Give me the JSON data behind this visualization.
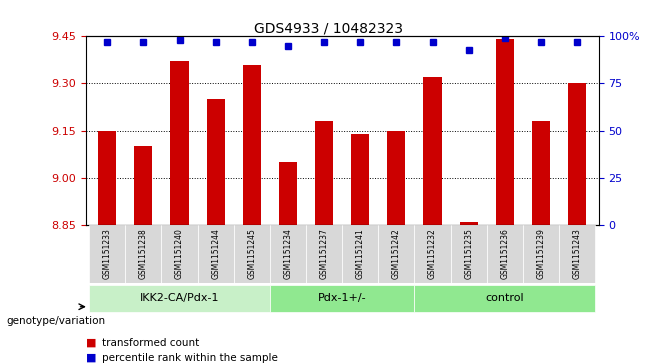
{
  "title": "GDS4933 / 10482323",
  "samples": [
    "GSM1151233",
    "GSM1151238",
    "GSM1151240",
    "GSM1151244",
    "GSM1151245",
    "GSM1151234",
    "GSM1151237",
    "GSM1151241",
    "GSM1151242",
    "GSM1151232",
    "GSM1151235",
    "GSM1151236",
    "GSM1151239",
    "GSM1151243"
  ],
  "red_values": [
    9.15,
    9.1,
    9.37,
    9.25,
    9.36,
    9.05,
    9.18,
    9.14,
    9.15,
    9.32,
    8.86,
    9.44,
    9.18,
    9.3
  ],
  "blue_values": [
    97,
    97,
    98,
    97,
    97,
    95,
    97,
    97,
    97,
    97,
    93,
    99,
    97,
    97
  ],
  "groups": [
    {
      "label": "IKK2-CA/Pdx-1",
      "start": 0,
      "end": 5,
      "color": "#c8f0c8"
    },
    {
      "label": "Pdx-1+/-",
      "start": 5,
      "end": 9,
      "color": "#90e890"
    },
    {
      "label": "control",
      "start": 9,
      "end": 14,
      "color": "#90e890"
    }
  ],
  "group_colors": [
    "#c8f0c8",
    "#90e890",
    "#90e890"
  ],
  "ylim_left": [
    8.85,
    9.45
  ],
  "ylim_right": [
    0,
    100
  ],
  "yticks_left": [
    8.85,
    9.0,
    9.15,
    9.3,
    9.45
  ],
  "yticks_right": [
    0,
    25,
    50,
    75,
    100
  ],
  "ytick_labels_right": [
    "0",
    "25",
    "50",
    "75",
    "100%"
  ],
  "bar_color": "#cc0000",
  "dot_color": "#0000cc",
  "bar_width": 0.5,
  "grid_color": "#000000",
  "bg_color": "#ffffff",
  "label_xlabel": "genotype/variation",
  "legend_items": [
    {
      "color": "#cc0000",
      "label": "transformed count"
    },
    {
      "color": "#0000cc",
      "label": "percentile rank within the sample"
    }
  ]
}
